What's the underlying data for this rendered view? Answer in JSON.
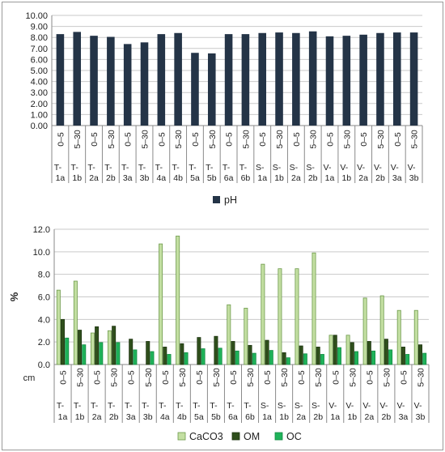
{
  "chart_data": [
    {
      "type": "bar",
      "ylim": [
        0,
        10
      ],
      "yticks": [
        "0.00",
        "1.00",
        "2.00",
        "3.00",
        "4.00",
        "5.00",
        "6.00",
        "7.00",
        "8.00",
        "9.00",
        "10.00"
      ],
      "depths": [
        "0–5",
        "5–30",
        "0–5",
        "5–30",
        "0–5",
        "5–30",
        "0–5",
        "5–30",
        "0–5",
        "5–30",
        "0–5",
        "5–30",
        "0–5",
        "5–30",
        "0–5",
        "5–30",
        "0–5",
        "5–30",
        "0–5",
        "5–30",
        "0–5",
        "5–30"
      ],
      "sites": [
        [
          "T-",
          "1a"
        ],
        [
          "T-",
          "1b"
        ],
        [
          "T-",
          "2a"
        ],
        [
          "T-",
          "2b"
        ],
        [
          "T-",
          "3a"
        ],
        [
          "T-",
          "3b"
        ],
        [
          "T-",
          "4a"
        ],
        [
          "T-",
          "4b"
        ],
        [
          "T-",
          "5a"
        ],
        [
          "T-",
          "5b"
        ],
        [
          "T-",
          "6a"
        ],
        [
          "T-",
          "6b"
        ],
        [
          "S-",
          "1a"
        ],
        [
          "S-",
          "1b"
        ],
        [
          "S-",
          "2a"
        ],
        [
          "S-",
          "2b"
        ],
        [
          "V-",
          "1a"
        ],
        [
          "V-",
          "1b"
        ],
        [
          "V-",
          "2a"
        ],
        [
          "V-",
          "2b"
        ],
        [
          "V-",
          "3a"
        ],
        [
          "V-",
          "3b"
        ]
      ],
      "series": [
        {
          "name": "pH",
          "color": "#243447",
          "values": [
            8.3,
            8.5,
            8.15,
            8.05,
            7.4,
            7.55,
            8.3,
            8.4,
            6.6,
            6.55,
            8.3,
            8.3,
            8.4,
            8.45,
            8.4,
            8.55,
            8.1,
            8.15,
            8.25,
            8.4,
            8.45,
            8.45
          ]
        }
      ],
      "grid": true,
      "legend": "bottom"
    },
    {
      "type": "bar",
      "ylabel": "%",
      "xunit": "cm",
      "ylim": [
        0,
        12
      ],
      "yticks": [
        "0.0",
        "2.0",
        "4.0",
        "6.0",
        "8.0",
        "10.0",
        "12.0"
      ],
      "depths": [
        "0–5",
        "5–30",
        "0–5",
        "5–30",
        "0–5",
        "5–30",
        "0–5",
        "5–30",
        "0–5",
        "5–30",
        "0–5",
        "5–30",
        "0–5",
        "5–30",
        "0–5",
        "5–30",
        "0–5",
        "5–30",
        "0–5",
        "5–30",
        "0–5",
        "5–30"
      ],
      "sites": [
        [
          "T-",
          "1a"
        ],
        [
          "T-",
          "1b"
        ],
        [
          "T-",
          "2a"
        ],
        [
          "T-",
          "2b"
        ],
        [
          "T-",
          "3a"
        ],
        [
          "T-",
          "3b"
        ],
        [
          "T-",
          "4a"
        ],
        [
          "T-",
          "4b"
        ],
        [
          "T-",
          "5a"
        ],
        [
          "T-",
          "5b"
        ],
        [
          "T-",
          "6a"
        ],
        [
          "T-",
          "6b"
        ],
        [
          "S-",
          "1a"
        ],
        [
          "S-",
          "1b"
        ],
        [
          "S-",
          "2a"
        ],
        [
          "S-",
          "2b"
        ],
        [
          "V-",
          "1a"
        ],
        [
          "V-",
          "1b"
        ],
        [
          "V-",
          "2a"
        ],
        [
          "V-",
          "2b"
        ],
        [
          "V-",
          "3a"
        ],
        [
          "V-",
          "3b"
        ]
      ],
      "series": [
        {
          "name": "CaCO3",
          "color": "#c3dfa2",
          "stroke": "#6e9a4c",
          "values": [
            6.6,
            7.4,
            2.8,
            3.0,
            0,
            0,
            10.7,
            11.4,
            0,
            0,
            5.3,
            5.0,
            8.9,
            8.5,
            8.5,
            9.9,
            2.6,
            2.6,
            5.9,
            6.1,
            4.8,
            4.8
          ]
        },
        {
          "name": "OM",
          "color": "#2f4f1c",
          "stroke": "#1f3511",
          "values": [
            4.0,
            3.05,
            3.35,
            3.4,
            2.25,
            2.05,
            1.55,
            1.85,
            2.4,
            2.5,
            2.05,
            1.7,
            2.15,
            1.05,
            1.65,
            1.55,
            2.6,
            1.95,
            2.05,
            2.25,
            1.55,
            1.75
          ]
        },
        {
          "name": "OC",
          "color": "#1fb35a",
          "stroke": "#138a42",
          "values": [
            2.35,
            1.75,
            1.95,
            1.95,
            1.3,
            1.15,
            0.9,
            1.05,
            1.4,
            1.45,
            1.2,
            1.0,
            1.25,
            0.6,
            0.95,
            0.9,
            1.5,
            1.15,
            1.2,
            1.3,
            0.9,
            1.0
          ]
        }
      ],
      "grid": true,
      "legend": "bottom"
    }
  ]
}
